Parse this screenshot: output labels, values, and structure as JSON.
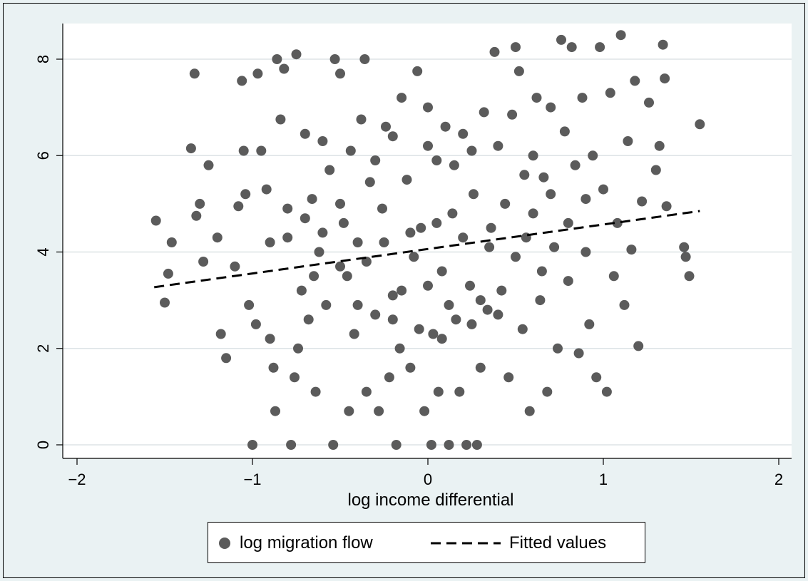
{
  "colors": {
    "page_background": "#eaf2f3",
    "plot_background": "#ffffff",
    "marker": "#5b5b5b",
    "fit_line": "#000000",
    "gridline": "#dde3e6"
  },
  "chart_data": {
    "type": "scatter",
    "xlabel": "log income differential",
    "ylabel": "",
    "xlim": [
      -2,
      2
    ],
    "ylim": [
      0,
      8.7
    ],
    "x_ticks": [
      -2,
      -1,
      0,
      1,
      2
    ],
    "x_tick_labels": [
      "−2",
      "−1",
      "0",
      "1",
      "2"
    ],
    "y_ticks": [
      0,
      2,
      4,
      6,
      8
    ],
    "y_tick_labels": [
      "0",
      "2",
      "4",
      "6",
      "8"
    ],
    "grid": "horizontal",
    "legend_position": "bottom",
    "legend": [
      "log migration flow",
      "Fitted values"
    ],
    "series": [
      {
        "name": "log migration flow",
        "marker": "circle",
        "points": [
          [
            -1.55,
            4.65
          ],
          [
            -1.48,
            3.55
          ],
          [
            -1.5,
            2.95
          ],
          [
            -1.46,
            4.2
          ],
          [
            -1.35,
            6.15
          ],
          [
            -1.33,
            7.7
          ],
          [
            -1.3,
            5.0
          ],
          [
            -1.32,
            4.75
          ],
          [
            -1.28,
            3.8
          ],
          [
            -1.25,
            5.8
          ],
          [
            -1.2,
            4.3
          ],
          [
            -1.18,
            2.3
          ],
          [
            -1.15,
            1.8
          ],
          [
            -1.1,
            3.7
          ],
          [
            -1.08,
            4.95
          ],
          [
            -1.05,
            6.1
          ],
          [
            -1.04,
            5.2
          ],
          [
            -1.02,
            2.9
          ],
          [
            -1.0,
            0.0
          ],
          [
            -0.98,
            2.5
          ],
          [
            -1.06,
            7.55
          ],
          [
            -0.97,
            7.7
          ],
          [
            -0.95,
            6.1
          ],
          [
            -0.92,
            5.3
          ],
          [
            -0.9,
            2.2
          ],
          [
            -0.88,
            1.6
          ],
          [
            -0.87,
            0.7
          ],
          [
            -0.86,
            8.0
          ],
          [
            -0.84,
            6.75
          ],
          [
            -0.82,
            7.8
          ],
          [
            -0.8,
            4.3
          ],
          [
            -0.78,
            0.0
          ],
          [
            -0.76,
            1.4
          ],
          [
            -0.75,
            8.1
          ],
          [
            -0.74,
            2.0
          ],
          [
            -0.72,
            3.2
          ],
          [
            -0.7,
            6.45
          ],
          [
            -0.68,
            2.6
          ],
          [
            -0.66,
            5.1
          ],
          [
            -0.64,
            1.1
          ],
          [
            -0.62,
            4.0
          ],
          [
            -0.6,
            6.3
          ],
          [
            -0.58,
            2.9
          ],
          [
            -0.56,
            5.7
          ],
          [
            -0.54,
            0.0
          ],
          [
            -0.53,
            8.0
          ],
          [
            -0.5,
            7.7
          ],
          [
            -0.48,
            4.6
          ],
          [
            -0.46,
            3.5
          ],
          [
            -0.45,
            0.7
          ],
          [
            -0.44,
            6.1
          ],
          [
            -0.42,
            2.3
          ],
          [
            -0.4,
            4.2
          ],
          [
            -0.38,
            6.75
          ],
          [
            -0.36,
            8.0
          ],
          [
            -0.35,
            1.1
          ],
          [
            -0.33,
            5.45
          ],
          [
            -0.3,
            2.7
          ],
          [
            -0.28,
            0.7
          ],
          [
            -0.26,
            4.9
          ],
          [
            -0.24,
            6.6
          ],
          [
            -0.22,
            1.4
          ],
          [
            -0.2,
            3.1
          ],
          [
            -0.18,
            0.0
          ],
          [
            -0.16,
            2.0
          ],
          [
            -0.15,
            7.2
          ],
          [
            -0.12,
            5.5
          ],
          [
            -0.1,
            1.6
          ],
          [
            -0.08,
            3.9
          ],
          [
            -0.06,
            7.75
          ],
          [
            -0.04,
            4.5
          ],
          [
            -0.02,
            0.7
          ],
          [
            0.0,
            7.0
          ],
          [
            0.02,
            0.0
          ],
          [
            0.03,
            2.3
          ],
          [
            0.05,
            5.9
          ],
          [
            0.06,
            1.1
          ],
          [
            0.08,
            3.6
          ],
          [
            0.1,
            6.6
          ],
          [
            0.12,
            0.0
          ],
          [
            0.14,
            4.8
          ],
          [
            0.16,
            2.6
          ],
          [
            0.18,
            1.1
          ],
          [
            0.2,
            6.45
          ],
          [
            0.22,
            0.0
          ],
          [
            0.24,
            3.3
          ],
          [
            0.26,
            5.2
          ],
          [
            0.28,
            0.0
          ],
          [
            0.3,
            1.6
          ],
          [
            0.32,
            6.9
          ],
          [
            0.34,
            2.8
          ],
          [
            0.36,
            4.5
          ],
          [
            0.38,
            8.15
          ],
          [
            0.4,
            6.2
          ],
          [
            0.42,
            3.2
          ],
          [
            0.44,
            5.0
          ],
          [
            0.46,
            1.4
          ],
          [
            0.48,
            6.85
          ],
          [
            0.5,
            8.25
          ],
          [
            0.52,
            7.75
          ],
          [
            0.54,
            2.4
          ],
          [
            0.56,
            4.3
          ],
          [
            0.58,
            0.7
          ],
          [
            0.6,
            6.0
          ],
          [
            0.62,
            7.2
          ],
          [
            0.64,
            3.0
          ],
          [
            0.66,
            5.55
          ],
          [
            0.68,
            1.1
          ],
          [
            0.7,
            7.0
          ],
          [
            0.72,
            4.1
          ],
          [
            0.74,
            2.0
          ],
          [
            0.76,
            8.4
          ],
          [
            0.78,
            6.5
          ],
          [
            0.8,
            3.4
          ],
          [
            0.82,
            8.25
          ],
          [
            0.84,
            5.8
          ],
          [
            0.86,
            1.9
          ],
          [
            0.88,
            7.2
          ],
          [
            0.9,
            4.0
          ],
          [
            0.92,
            2.5
          ],
          [
            0.94,
            6.0
          ],
          [
            0.96,
            1.4
          ],
          [
            0.98,
            8.25
          ],
          [
            1.0,
            5.3
          ],
          [
            1.02,
            1.1
          ],
          [
            1.04,
            7.3
          ],
          [
            1.06,
            3.5
          ],
          [
            1.08,
            4.6
          ],
          [
            1.1,
            8.5
          ],
          [
            1.12,
            2.9
          ],
          [
            1.14,
            6.3
          ],
          [
            1.16,
            4.05
          ],
          [
            1.18,
            7.55
          ],
          [
            1.2,
            2.05
          ],
          [
            1.22,
            5.05
          ],
          [
            1.26,
            7.1
          ],
          [
            1.3,
            5.7
          ],
          [
            1.32,
            6.2
          ],
          [
            1.34,
            8.3
          ],
          [
            1.35,
            7.6
          ],
          [
            1.36,
            4.95
          ],
          [
            1.46,
            4.1
          ],
          [
            1.47,
            3.9
          ],
          [
            1.49,
            3.5
          ],
          [
            1.55,
            6.65
          ],
          [
            -0.3,
            5.9
          ],
          [
            -0.2,
            6.4
          ],
          [
            0.0,
            6.2
          ],
          [
            0.15,
            5.8
          ],
          [
            0.25,
            6.1
          ],
          [
            -0.25,
            4.2
          ],
          [
            -0.1,
            4.4
          ],
          [
            0.05,
            4.6
          ],
          [
            0.2,
            4.3
          ],
          [
            0.35,
            4.1
          ],
          [
            -0.15,
            3.2
          ],
          [
            0.0,
            3.3
          ],
          [
            0.12,
            2.9
          ],
          [
            0.3,
            3.0
          ],
          [
            -0.35,
            3.8
          ],
          [
            0.6,
            4.8
          ],
          [
            0.7,
            5.2
          ],
          [
            0.55,
            5.6
          ],
          [
            -0.6,
            4.4
          ],
          [
            -0.7,
            4.7
          ],
          [
            -0.8,
            4.9
          ],
          [
            -0.5,
            5.0
          ],
          [
            -0.9,
            4.2
          ],
          [
            0.8,
            4.6
          ],
          [
            0.9,
            5.1
          ],
          [
            -0.05,
            2.4
          ],
          [
            0.08,
            2.2
          ],
          [
            -0.2,
            2.6
          ],
          [
            0.25,
            2.5
          ],
          [
            0.4,
            2.7
          ],
          [
            -0.4,
            2.9
          ],
          [
            0.65,
            3.6
          ],
          [
            -0.65,
            3.5
          ],
          [
            0.5,
            3.9
          ],
          [
            -0.5,
            3.7
          ]
        ]
      },
      {
        "name": "Fitted values",
        "line_style": "dashed",
        "points": [
          [
            -1.56,
            3.27
          ],
          [
            1.55,
            4.85
          ]
        ]
      }
    ]
  }
}
